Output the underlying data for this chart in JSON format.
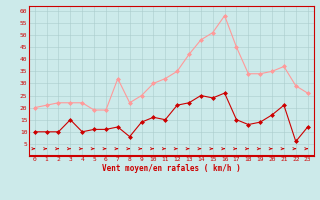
{
  "hours": [
    0,
    1,
    2,
    3,
    4,
    5,
    6,
    7,
    8,
    9,
    10,
    11,
    12,
    13,
    14,
    15,
    16,
    17,
    18,
    19,
    20,
    21,
    22,
    23
  ],
  "wind_mean": [
    10,
    10,
    10,
    15,
    10,
    11,
    11,
    12,
    8,
    14,
    16,
    15,
    21,
    22,
    25,
    24,
    26,
    15,
    13,
    14,
    17,
    21,
    6,
    12
  ],
  "wind_gusts": [
    20,
    21,
    22,
    22,
    22,
    19,
    19,
    32,
    22,
    25,
    30,
    32,
    35,
    42,
    48,
    51,
    58,
    45,
    34,
    34,
    35,
    37,
    29,
    26
  ],
  "xlabel": "Vent moyen/en rafales ( km/h )",
  "ylim": [
    0,
    62
  ],
  "yticks": [
    5,
    10,
    15,
    20,
    25,
    30,
    35,
    40,
    45,
    50,
    55,
    60
  ],
  "bg_color": "#cceaea",
  "grid_color": "#aacccc",
  "mean_color": "#cc0000",
  "gust_color": "#ff9999",
  "xlabel_color": "#cc0000",
  "tick_color": "#cc0000",
  "spine_color": "#cc0000"
}
